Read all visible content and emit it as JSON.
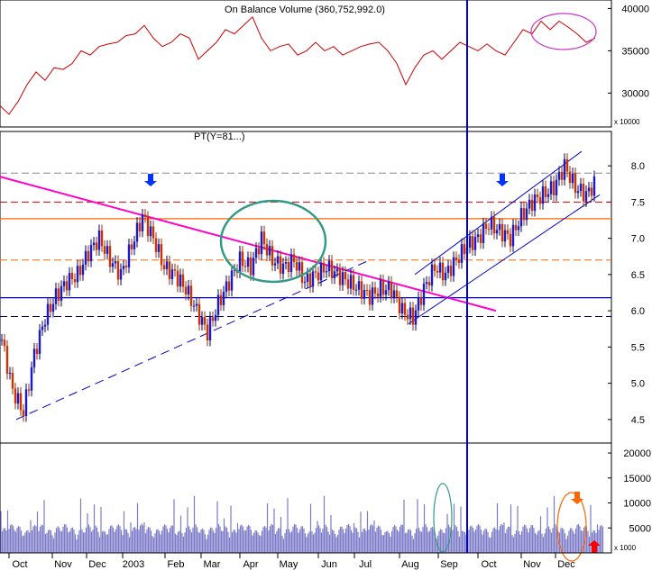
{
  "chart_data": [
    {
      "panel": "obv",
      "type": "line",
      "title": "On Balance Volume (360,752,992.0)",
      "y_ticks": [
        "40000",
        "35000",
        "30000"
      ],
      "y_tick_values": [
        40000,
        35000,
        30000
      ],
      "ylim": [
        26000,
        41000
      ],
      "scale_note": "x 10000",
      "series": [
        {
          "color": "#cc0000",
          "x": [
            0,
            10,
            20,
            30,
            40,
            50,
            60,
            70,
            80,
            90,
            100,
            110,
            120,
            130,
            140,
            150,
            160,
            170,
            180,
            190,
            200,
            210,
            220,
            230,
            240,
            250,
            260,
            270,
            280,
            290,
            300,
            310,
            320,
            330,
            340,
            350,
            360,
            370,
            380,
            390,
            400,
            410,
            420,
            430,
            440,
            450,
            460,
            470,
            480,
            490,
            500,
            510,
            520,
            530,
            540,
            550,
            560,
            570,
            580,
            590,
            600,
            610,
            620,
            630,
            640,
            650,
            660
          ],
          "values": [
            28500,
            27500,
            29000,
            31000,
            32500,
            31500,
            33000,
            32800,
            33500,
            35000,
            34500,
            35500,
            35800,
            36000,
            36800,
            37000,
            38000,
            36500,
            35500,
            36000,
            37000,
            36500,
            34000,
            35000,
            36000,
            37500,
            37000,
            38000,
            39000,
            36500,
            35000,
            35500,
            35800,
            34500,
            35000,
            36000,
            35000,
            35500,
            34500,
            35000,
            35500,
            35800,
            36000,
            35000,
            33500,
            31000,
            33000,
            34500,
            35000,
            34000,
            35000,
            36000,
            35500,
            35000,
            35800,
            35000,
            34500,
            36000,
            37500,
            37000,
            38500,
            37500,
            38500,
            37800,
            37000,
            36000,
            36500
          ]
        }
      ],
      "annotations": [
        {
          "type": "ellipse",
          "color": "#cc33cc",
          "cx": 625,
          "cy": 35,
          "rx": 36,
          "ry": 20
        }
      ]
    },
    {
      "panel": "price",
      "type": "candlestick",
      "title": "PT(Y=81...)",
      "y_ticks": [
        "8.0",
        "7.5",
        "7.0",
        "6.5",
        "6.0",
        "5.5",
        "5.0",
        "4.5"
      ],
      "y_tick_values": [
        8.0,
        7.5,
        7.0,
        6.5,
        6.0,
        5.5,
        5.0,
        4.5
      ],
      "ylim": [
        4.2,
        8.3
      ],
      "x_ticks": [
        "Oct",
        "Nov",
        "Dec",
        "2003",
        "Feb",
        "Mar",
        "Apr",
        "May",
        "Jun",
        "Jul",
        "Aug",
        "Sep",
        "Oct",
        "Nov",
        "Dec"
      ],
      "x_tick_positions": [
        22,
        70,
        108,
        148,
        195,
        235,
        278,
        320,
        365,
        405,
        455,
        498,
        542,
        590,
        628
      ],
      "series": [
        {
          "name": "close",
          "x": [
            0,
            12,
            24,
            36,
            48,
            60,
            72,
            84,
            96,
            108,
            120,
            132,
            144,
            156,
            168,
            180,
            192,
            204,
            216,
            228,
            240,
            252,
            264,
            276,
            288,
            300,
            312,
            324,
            336,
            348,
            360,
            372,
            384,
            396,
            408,
            420,
            432,
            444,
            456,
            468,
            480,
            492,
            504,
            516,
            528,
            540,
            552,
            564,
            576,
            588,
            600,
            612,
            624,
            636,
            648,
            660
          ],
          "values": [
            5.6,
            4.9,
            4.6,
            5.4,
            5.9,
            6.2,
            6.4,
            6.5,
            6.8,
            7.0,
            6.7,
            6.5,
            6.9,
            7.3,
            7.0,
            6.6,
            6.5,
            6.3,
            6.0,
            5.7,
            6.1,
            6.4,
            6.7,
            6.6,
            7.0,
            6.7,
            6.6,
            6.7,
            6.4,
            6.5,
            6.6,
            6.5,
            6.4,
            6.3,
            6.2,
            6.3,
            6.3,
            6.0,
            5.9,
            6.3,
            6.6,
            6.5,
            6.7,
            6.9,
            7.0,
            7.2,
            7.1,
            7.0,
            7.3,
            7.5,
            7.6,
            7.7,
            8.0,
            7.7,
            7.6,
            7.8
          ]
        }
      ],
      "horizontal_lines": [
        {
          "value": 7.9,
          "style": "dashed",
          "color": "#888888"
        },
        {
          "value": 7.5,
          "style": "dashed",
          "color": "#cc0000"
        },
        {
          "value": 7.27,
          "style": "solid",
          "color": "#ff6600"
        },
        {
          "value": 6.7,
          "style": "dashed",
          "color": "#ff6600"
        },
        {
          "value": 6.18,
          "style": "solid",
          "color": "#0000cc"
        },
        {
          "value": 5.92,
          "style": "dashed",
          "color": "#000066"
        }
      ],
      "trendlines": [
        {
          "color": "#ff00cc",
          "from": [
            0,
            7.85
          ],
          "to": [
            550,
            6.0
          ]
        },
        {
          "color": "#0000cc",
          "dashed": true,
          "from": [
            18,
            4.5
          ],
          "to": [
            410,
            6.7
          ]
        },
        {
          "color": "#0000cc",
          "from": [
            460,
            6.5
          ],
          "to": [
            645,
            8.2
          ]
        },
        {
          "color": "#0000cc",
          "from": [
            453,
            5.82
          ],
          "to": [
            665,
            7.6
          ]
        }
      ],
      "annotations": [
        {
          "type": "circle",
          "color": "#339988",
          "cx": 303,
          "cy": 268,
          "rx": 58,
          "ry": 45
        },
        {
          "type": "arrow-down",
          "color": "#0033ff",
          "x": 167,
          "y": 207
        },
        {
          "type": "arrow-down",
          "color": "#0033ff",
          "x": 557,
          "y": 207
        }
      ],
      "vertical_marker_x": 518
    },
    {
      "panel": "volume",
      "type": "bar",
      "y_ticks": [
        "20000",
        "15000",
        "10000",
        "5000"
      ],
      "y_tick_values": [
        20000,
        15000,
        10000,
        5000
      ],
      "ylim": [
        0,
        22000
      ],
      "scale_note": "x 1000",
      "color": "#7b7bc9",
      "annotations": [
        {
          "type": "ellipse",
          "color": "#339988",
          "cx": 491,
          "cy": 575,
          "rx": 10,
          "ry": 38
        },
        {
          "type": "ellipse",
          "color": "#ff6600",
          "cx": 634,
          "cy": 585,
          "rx": 16,
          "ry": 38
        },
        {
          "type": "arrow-down",
          "color": "#ff6600",
          "x": 640,
          "y": 560
        },
        {
          "type": "arrow-up",
          "color": "#ff0000",
          "x": 659,
          "y": 600
        }
      ]
    }
  ]
}
